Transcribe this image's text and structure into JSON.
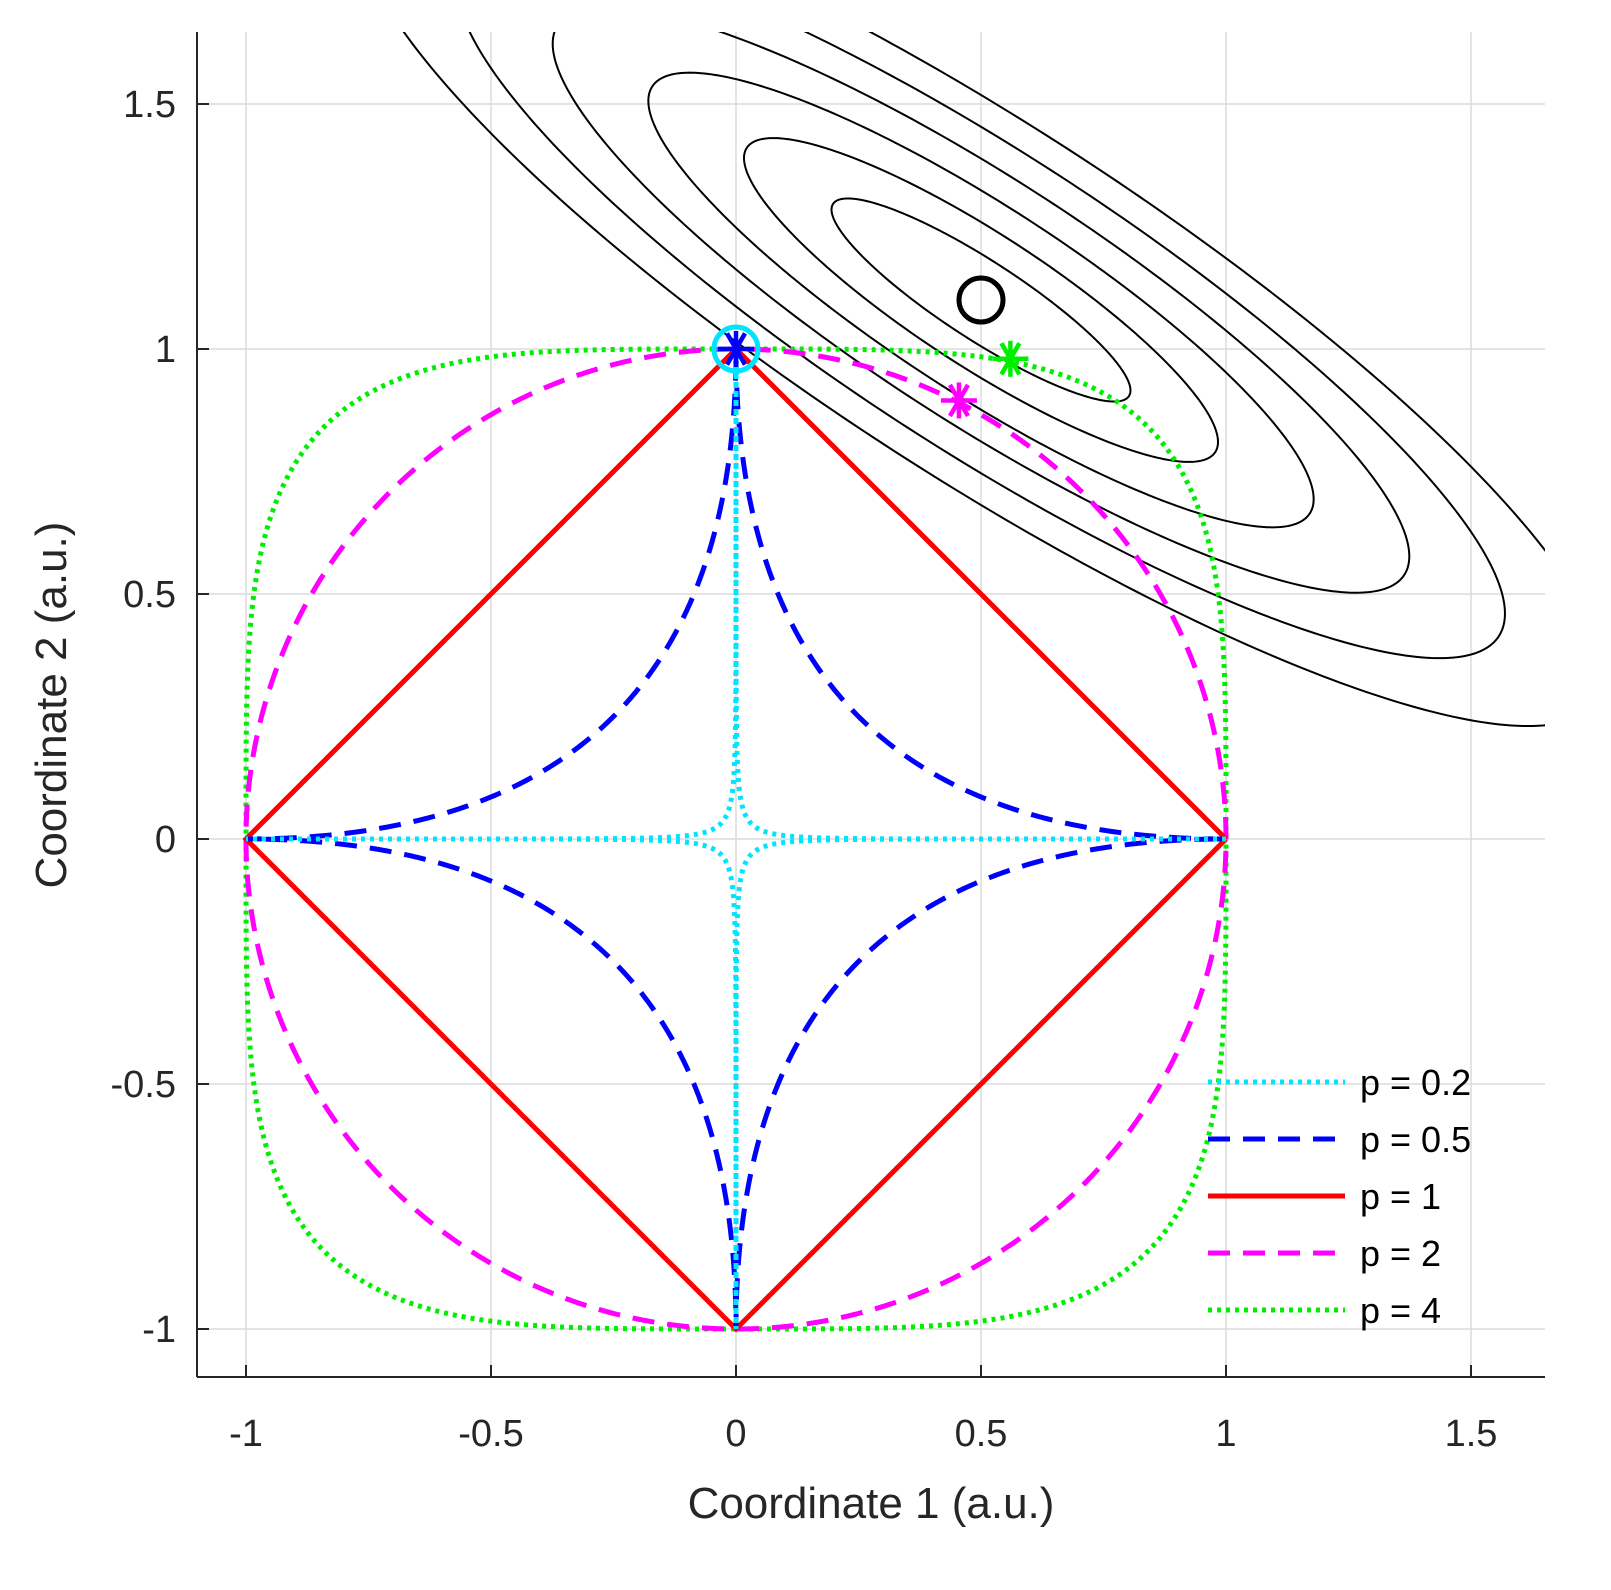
{
  "chart_data": {
    "type": "line",
    "xlabel": "Coordinate 1 (a.u.)",
    "ylabel": "Coordinate 2 (a.u.)",
    "xlim": [
      -1.1,
      1.65
    ],
    "ylim": [
      -1.1,
      1.65
    ],
    "grid": true,
    "x_ticks": [
      -1,
      -0.5,
      0,
      0.5,
      1,
      1.5
    ],
    "x_tick_labels": [
      "-1",
      "-0.5",
      "0",
      "0.5",
      "1",
      "1.5"
    ],
    "y_ticks": [
      -1,
      -0.5,
      0,
      0.5,
      1,
      1.5
    ],
    "y_tick_labels": [
      "-1",
      "-0.5",
      "0",
      "0.5",
      "1",
      "1.5"
    ],
    "legend_position": "bottom-right",
    "series": [
      {
        "name": "p = 0.2",
        "p": 0.2,
        "color": "#00e5ff",
        "style": "dotted"
      },
      {
        "name": "p = 0.5",
        "p": 0.5,
        "color": "#0000ff",
        "style": "dashed"
      },
      {
        "name": "p = 1",
        "p": 1,
        "color": "#ff0000",
        "style": "solid"
      },
      {
        "name": "p = 2",
        "p": 2,
        "color": "#ff00ff",
        "style": "dashed"
      },
      {
        "name": "p = 4",
        "p": 4,
        "color": "#00ee00",
        "style": "dotted"
      }
    ],
    "contours": {
      "center": [
        0.5,
        1.1
      ],
      "color": "#000000",
      "level_semi_axes": [
        {
          "major": 0.36,
          "minor": 0.08
        },
        {
          "major": 0.57,
          "minor": 0.135
        },
        {
          "major": 0.8,
          "minor": 0.19
        },
        {
          "major": 1.03,
          "minor": 0.245
        },
        {
          "major": 1.26,
          "minor": 0.3
        },
        {
          "major": 1.5,
          "minor": 0.355
        }
      ],
      "angle_deg": -33
    },
    "markers": [
      {
        "name": "unconstrained-minimum",
        "shape": "circle",
        "x": 0.5,
        "y": 1.1,
        "color": "#000000"
      },
      {
        "name": "p4-solution",
        "shape": "asterisk",
        "x": 0.56,
        "y": 0.98,
        "color": "#00ee00"
      },
      {
        "name": "p2-solution",
        "shape": "asterisk",
        "x": 0.455,
        "y": 0.895,
        "color": "#ff00ff"
      },
      {
        "name": "p05-solution",
        "shape": "asterisk",
        "x": 0,
        "y": 1,
        "color": "#0000ff"
      },
      {
        "name": "p02-solution",
        "shape": "circle",
        "x": 0,
        "y": 1,
        "color": "#00e5ff"
      }
    ]
  }
}
